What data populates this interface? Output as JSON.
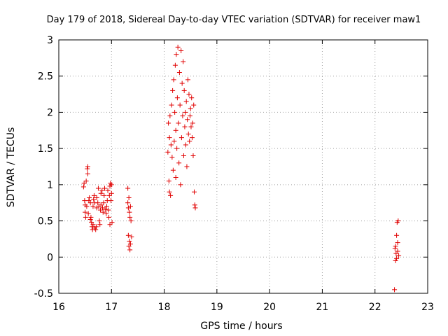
{
  "chart_data": {
    "type": "scatter",
    "title": "Day 179 of 2018, Sidereal Day-to-day VTEC variation (SDTVAR) for receiver maw1",
    "xlabel": "GPS time / hours",
    "ylabel": "SDTVAR / TECUs",
    "xlim": [
      16,
      23
    ],
    "ylim": [
      -0.5,
      3
    ],
    "xticks": [
      "16",
      "17",
      "18",
      "19",
      "20",
      "21",
      "22",
      "23"
    ],
    "yticks": [
      "-0.5",
      "0",
      "0.5",
      "1",
      "1.5",
      "2",
      "2.5",
      "3"
    ],
    "grid": true,
    "marker": "+",
    "color": "#e00000",
    "series": [
      {
        "name": "SDTVAR",
        "points": [
          [
            16.47,
            0.97
          ],
          [
            16.48,
            1.02
          ],
          [
            16.49,
            0.78
          ],
          [
            16.5,
            0.72
          ],
          [
            16.5,
            0.62
          ],
          [
            16.51,
            0.55
          ],
          [
            16.52,
            1.05
          ],
          [
            16.53,
            0.7
          ],
          [
            16.54,
            1.22
          ],
          [
            16.55,
            1.25
          ],
          [
            16.55,
            1.15
          ],
          [
            16.56,
            0.6
          ],
          [
            16.57,
            0.78
          ],
          [
            16.58,
            0.82
          ],
          [
            16.6,
            0.75
          ],
          [
            16.6,
            0.52
          ],
          [
            16.61,
            0.55
          ],
          [
            16.62,
            0.48
          ],
          [
            16.63,
            0.42
          ],
          [
            16.64,
            0.38
          ],
          [
            16.65,
            0.45
          ],
          [
            16.65,
            0.7
          ],
          [
            16.66,
            0.8
          ],
          [
            16.67,
            0.85
          ],
          [
            16.68,
            0.75
          ],
          [
            16.68,
            0.4
          ],
          [
            16.7,
            0.38
          ],
          [
            16.71,
            0.42
          ],
          [
            16.72,
            0.68
          ],
          [
            16.72,
            0.82
          ],
          [
            16.74,
            0.75
          ],
          [
            16.75,
            0.95
          ],
          [
            16.76,
            0.7
          ],
          [
            16.77,
            0.5
          ],
          [
            16.78,
            0.45
          ],
          [
            16.79,
            0.65
          ],
          [
            16.8,
            0.72
          ],
          [
            16.8,
            0.88
          ],
          [
            16.82,
            0.92
          ],
          [
            16.83,
            0.68
          ],
          [
            16.84,
            0.62
          ],
          [
            16.85,
            0.75
          ],
          [
            16.86,
            0.85
          ],
          [
            16.87,
            0.95
          ],
          [
            16.88,
            0.66
          ],
          [
            16.9,
            0.6
          ],
          [
            16.91,
            0.7
          ],
          [
            16.92,
            0.78
          ],
          [
            16.93,
            0.92
          ],
          [
            16.94,
            0.65
          ],
          [
            16.95,
            0.55
          ],
          [
            16.96,
            0.85
          ],
          [
            16.97,
            0.45
          ],
          [
            16.97,
            0.98
          ],
          [
            16.98,
            1.02
          ],
          [
            16.99,
            0.78
          ],
          [
            17.0,
            0.88
          ],
          [
            17.0,
            1.0
          ],
          [
            17.01,
            0.48
          ],
          [
            17.31,
            0.95
          ],
          [
            17.31,
            0.75
          ],
          [
            17.32,
            0.68
          ],
          [
            17.32,
            0.3
          ],
          [
            17.33,
            0.82
          ],
          [
            17.33,
            0.15
          ],
          [
            17.34,
            0.62
          ],
          [
            17.34,
            0.22
          ],
          [
            17.35,
            0.55
          ],
          [
            17.35,
            0.1
          ],
          [
            17.36,
            0.7
          ],
          [
            17.36,
            0.18
          ],
          [
            17.37,
            0.5
          ],
          [
            17.38,
            0.28
          ],
          [
            18.07,
            1.45
          ],
          [
            18.08,
            1.85
          ],
          [
            18.09,
            1.05
          ],
          [
            18.1,
            0.9
          ],
          [
            18.1,
            1.65
          ],
          [
            18.11,
            1.95
          ],
          [
            18.12,
            0.85
          ],
          [
            18.13,
            1.55
          ],
          [
            18.14,
            2.1
          ],
          [
            18.15,
            1.38
          ],
          [
            18.16,
            2.3
          ],
          [
            18.17,
            1.2
          ],
          [
            18.18,
            2.45
          ],
          [
            18.19,
            1.6
          ],
          [
            18.2,
            2.0
          ],
          [
            18.21,
            2.65
          ],
          [
            18.22,
            1.75
          ],
          [
            18.22,
            1.1
          ],
          [
            18.23,
            2.8
          ],
          [
            18.24,
            1.5
          ],
          [
            18.25,
            2.2
          ],
          [
            18.26,
            2.9
          ],
          [
            18.27,
            1.85
          ],
          [
            18.28,
            1.3
          ],
          [
            18.29,
            2.55
          ],
          [
            18.3,
            2.1
          ],
          [
            18.31,
            1.0
          ],
          [
            18.32,
            2.85
          ],
          [
            18.33,
            1.65
          ],
          [
            18.34,
            2.4
          ],
          [
            18.35,
            1.95
          ],
          [
            18.36,
            2.7
          ],
          [
            18.37,
            1.4
          ],
          [
            18.38,
            2.3
          ],
          [
            18.39,
            1.8
          ],
          [
            18.4,
            2.0
          ],
          [
            18.41,
            1.55
          ],
          [
            18.42,
            2.15
          ],
          [
            18.43,
            1.25
          ],
          [
            18.44,
            1.9
          ],
          [
            18.45,
            2.45
          ],
          [
            18.46,
            1.7
          ],
          [
            18.47,
            2.25
          ],
          [
            18.48,
            1.6
          ],
          [
            18.49,
            1.95
          ],
          [
            18.5,
            2.05
          ],
          [
            18.51,
            1.8
          ],
          [
            18.52,
            2.2
          ],
          [
            18.53,
            1.65
          ],
          [
            18.54,
            1.85
          ],
          [
            18.55,
            1.4
          ],
          [
            18.56,
            2.1
          ],
          [
            18.57,
            0.9
          ],
          [
            18.58,
            0.72
          ],
          [
            18.59,
            0.68
          ],
          [
            22.37,
            -0.45
          ],
          [
            22.38,
            0.12
          ],
          [
            22.39,
            -0.05
          ],
          [
            22.39,
            0.15
          ],
          [
            22.4,
            0.05
          ],
          [
            22.41,
            0.3
          ],
          [
            22.41,
            -0.02
          ],
          [
            22.42,
            0.48
          ],
          [
            22.43,
            0.2
          ],
          [
            22.43,
            0.08
          ],
          [
            22.44,
            0.5
          ],
          [
            22.45,
            0.02
          ]
        ]
      }
    ]
  }
}
